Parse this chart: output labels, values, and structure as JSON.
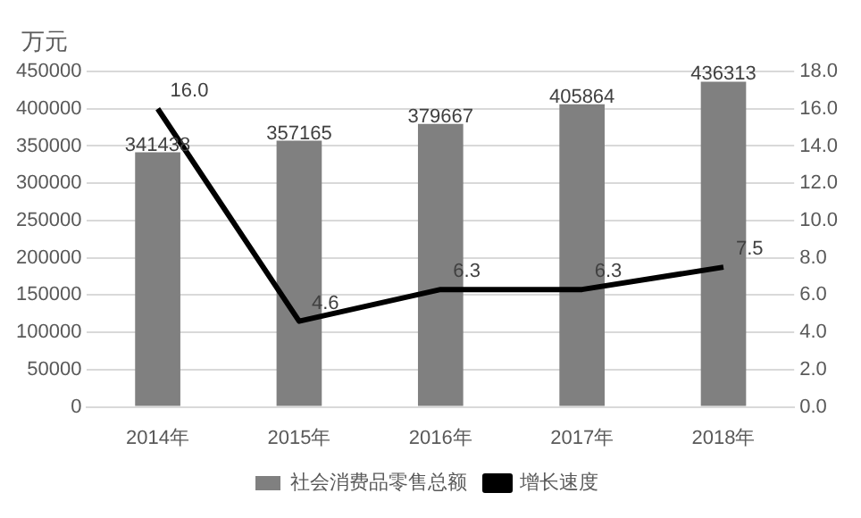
{
  "chart_data": {
    "type": "bar",
    "ylabel": "万元",
    "categories": [
      "2014年",
      "2015年",
      "2016年",
      "2017年",
      "2018年"
    ],
    "series": [
      {
        "name": "社会消费品零售总额",
        "color": "#808080",
        "values": [
          341438,
          357165,
          379667,
          405864,
          436313
        ]
      },
      {
        "name": "增长速度",
        "type": "line",
        "axis": "y2",
        "color": "#000000",
        "values": [
          16.0,
          4.6,
          6.3,
          6.3,
          7.5
        ],
        "value_labels": [
          "16.0",
          "4.6",
          "6.3",
          "6.3",
          "7.5"
        ]
      }
    ],
    "ylim": [
      0,
      450000
    ],
    "yticks": [
      0,
      50000,
      100000,
      150000,
      200000,
      250000,
      300000,
      350000,
      400000,
      450000
    ],
    "y2lim": [
      0,
      18
    ],
    "y2ticks": [
      {
        "value": 0,
        "label": "0.0"
      },
      {
        "value": 2,
        "label": "2.0"
      },
      {
        "value": 4,
        "label": "4.0"
      },
      {
        "value": 6,
        "label": "6.0"
      },
      {
        "value": 8,
        "label": "8.0"
      },
      {
        "value": 10,
        "label": "10.0"
      },
      {
        "value": 12,
        "label": "12.0"
      },
      {
        "value": 14,
        "label": "14.0"
      },
      {
        "value": 16,
        "label": "16.0"
      },
      {
        "value": 18,
        "label": "18.0"
      }
    ],
    "data_labels": true,
    "grid": "y",
    "legend": "bottom",
    "marker": "none",
    "line_style": "solid"
  }
}
